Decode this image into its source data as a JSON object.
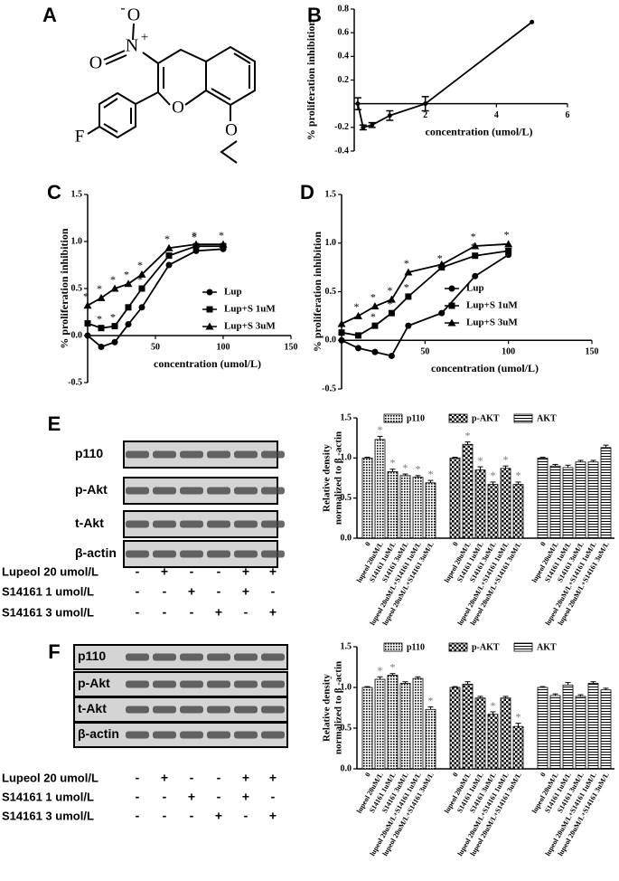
{
  "panel_labels": [
    "A",
    "B",
    "C",
    "D",
    "E",
    "F"
  ],
  "structure": {
    "atoms": [
      "O",
      "-",
      "N",
      "+",
      "O",
      "O",
      "F",
      "O"
    ]
  },
  "chart_data": [
    {
      "type": "line",
      "x": [
        0.1,
        0.25,
        0.5,
        1,
        2,
        5
      ],
      "values": [
        0.0,
        -0.2,
        -0.18,
        -0.1,
        0.0,
        0.69
      ],
      "errors": [
        0.05,
        0.02,
        0.02,
        0.04,
        0.06,
        0.0
      ],
      "xlim": [
        0,
        6
      ],
      "xticks": [
        2,
        4,
        6
      ],
      "ylim": [
        -0.4,
        0.8
      ],
      "yticks": [
        -0.4,
        -0.2,
        0.2,
        0.4,
        0.6,
        0.8
      ],
      "xlabel": "concentration (umol/L)",
      "ylabel": "% proliferation inhibition",
      "color": "#000000"
    },
    {
      "type": "line",
      "x": [
        0,
        10,
        20,
        30,
        40,
        60,
        80,
        100
      ],
      "series": [
        {
          "name": "Lup",
          "marker": "circle",
          "color": "#000000",
          "values": [
            0.0,
            -0.12,
            -0.07,
            0.12,
            0.3,
            0.75,
            0.9,
            0.92
          ],
          "significance": [
            null,
            null,
            null,
            null,
            null,
            null,
            null,
            null
          ]
        },
        {
          "name": "Lup+S  1uM",
          "marker": "square",
          "color": "#000000",
          "values": [
            0.13,
            0.08,
            0.1,
            0.3,
            0.5,
            0.85,
            0.95,
            0.95
          ],
          "significance": [
            null,
            "*",
            "*",
            null,
            "*",
            null,
            "*",
            null
          ]
        },
        {
          "name": "Lup+S  3uM",
          "marker": "triangle",
          "color": "#000000",
          "values": [
            0.32,
            0.4,
            0.5,
            0.55,
            0.65,
            0.93,
            0.97,
            0.97
          ],
          "significance": [
            "*",
            "*",
            "*",
            "*",
            "*",
            "*",
            "*",
            "*"
          ]
        }
      ],
      "xlim": [
        0,
        150
      ],
      "xticks": [
        50,
        100,
        150
      ],
      "ylim": [
        -0.5,
        1.5
      ],
      "yticks": [
        -0.5,
        {
          "value": 0,
          "label": "0.0"
        },
        0.5,
        {
          "value": 1,
          "label": "1.0"
        },
        1.5
      ],
      "xlabel": "concentration (umol/L)",
      "ylabel": "% proliferation inhibition"
    },
    {
      "type": "line",
      "x": [
        0,
        10,
        20,
        30,
        40,
        60,
        80,
        100
      ],
      "series": [
        {
          "name": "Lup",
          "marker": "circle",
          "color": "#000000",
          "values": [
            0.0,
            -0.08,
            -0.12,
            -0.16,
            0.15,
            0.28,
            0.66,
            0.88
          ],
          "significance": [
            null,
            null,
            null,
            null,
            null,
            null,
            null,
            null
          ]
        },
        {
          "name": "Lup+S  1uM",
          "marker": "square",
          "color": "#000000",
          "values": [
            0.08,
            0.05,
            0.15,
            0.28,
            0.45,
            0.75,
            0.87,
            0.92
          ],
          "significance": [
            null,
            null,
            "*",
            "*",
            "*",
            "*",
            "*",
            null
          ]
        },
        {
          "name": "Lup+S  3uM",
          "marker": "triangle",
          "color": "#000000",
          "values": [
            0.17,
            0.25,
            0.35,
            0.42,
            0.7,
            0.78,
            0.97,
            0.99
          ],
          "significance": [
            null,
            "*",
            "*",
            "*",
            "*",
            null,
            "*",
            "*"
          ]
        }
      ],
      "xlim": [
        0,
        150
      ],
      "xticks": [
        50,
        100,
        150
      ],
      "ylim": [
        -0.5,
        1.5
      ],
      "yticks": [
        -0.5,
        {
          "value": 0,
          "label": "0.0"
        },
        0.5,
        {
          "value": 1,
          "label": "1.0"
        },
        1.5
      ],
      "xlabel": "concentration (umol/L)",
      "ylabel": "% proliferation inhibition"
    },
    {
      "type": "bar",
      "ylim": [
        0,
        1.5
      ],
      "yticks": [
        {
          "value": 0,
          "label": "0.0"
        },
        0.5,
        {
          "value": 1,
          "label": "1.0"
        },
        1.5
      ],
      "ylabel": [
        "Relative density",
        "normalized to β -actin"
      ],
      "series": [
        {
          "name": "p110",
          "pattern": "dots",
          "categories": [
            "0",
            "lupeol 20uM/L",
            "S14161 1uM/L",
            "S14161 3uM/L",
            "lupeol 20uM/L+S14161 1uM/L",
            "lupeol 20uM/L+S14161 3uM/L"
          ],
          "values": [
            1.0,
            1.23,
            0.83,
            0.78,
            0.76,
            0.69
          ],
          "errors": [
            0.01,
            0.04,
            0.03,
            0.02,
            0.02,
            0.03
          ],
          "significance": [
            null,
            "*",
            "*",
            "*",
            "*",
            "*"
          ]
        },
        {
          "name": "p-AKT",
          "pattern": "checker",
          "categories": [
            "0",
            "lupeol 20uM/L",
            "S14161 1uM/L",
            "S14161 3uM/L",
            "lupeol 20uM/L+S14161 1uM/L",
            "lupeol 20uM/L+S14161 3uM/L"
          ],
          "values": [
            1.0,
            1.17,
            0.85,
            0.67,
            0.87,
            0.67
          ],
          "errors": [
            0.01,
            0.03,
            0.04,
            0.03,
            0.03,
            0.03
          ],
          "significance": [
            null,
            "*",
            "*",
            "*",
            "*",
            "*"
          ]
        },
        {
          "name": "AKT",
          "pattern": "hlines",
          "categories": [
            "0",
            "lupeol 20uM/L",
            "S14161 1uM/L",
            "S14161 3uM/L",
            "lupeol 20uM/L+S14161 1uM/L",
            "lupeol 20uM/L+S14161 3uM/L"
          ],
          "values": [
            1.0,
            0.9,
            0.88,
            0.95,
            0.95,
            1.13
          ],
          "errors": [
            0.01,
            0.02,
            0.03,
            0.02,
            0.02,
            0.03
          ],
          "significance": [
            null,
            null,
            null,
            null,
            null,
            null
          ]
        }
      ]
    },
    {
      "type": "bar",
      "ylim": [
        0,
        1.5
      ],
      "yticks": [
        {
          "value": 0,
          "label": "0.0"
        },
        0.5,
        {
          "value": 1,
          "label": "1.0"
        },
        1.5
      ],
      "ylabel": [
        "Relative density",
        "normalized to β -actin"
      ],
      "series": [
        {
          "name": "p110",
          "pattern": "dots",
          "categories": [
            "0",
            "lupeol 20uM/L",
            "S14161 1uM/L",
            "S14161 3uM/L",
            "lupeol 20uM/L+S14161 1uM/L",
            "lupeol 20uM/L+S14161 3uM/L"
          ],
          "values": [
            1.0,
            1.1,
            1.15,
            1.05,
            1.11,
            0.73
          ],
          "errors": [
            0.01,
            0.03,
            0.02,
            0.02,
            0.02,
            0.03
          ],
          "significance": [
            null,
            "*",
            "*",
            null,
            null,
            "*"
          ]
        },
        {
          "name": "p-AKT",
          "pattern": "checker",
          "categories": [
            "0",
            "lupeol 20uM/L",
            "S14161 1uM/L",
            "S14161 3uM/L",
            "lupeol 20uM/L+S14161 1uM/L",
            "lupeol 20uM/L+S14161 3uM/L"
          ],
          "values": [
            1.0,
            1.04,
            0.87,
            0.67,
            0.87,
            0.52
          ],
          "errors": [
            0.01,
            0.03,
            0.02,
            0.03,
            0.02,
            0.04
          ],
          "significance": [
            null,
            null,
            null,
            "*",
            null,
            "*"
          ]
        },
        {
          "name": "AKT",
          "pattern": "hlines",
          "categories": [
            "0",
            "lupeol 20uM/L",
            "S14161 1uM/L",
            "S14161 3uM/L",
            "lupeol 20uM/L+S14161 1uM/L",
            "lupeol 20uM/L+S14161 3uM/L"
          ],
          "values": [
            1.0,
            0.9,
            1.03,
            0.89,
            1.05,
            0.97
          ],
          "errors": [
            0.01,
            0.02,
            0.03,
            0.02,
            0.02,
            0.02
          ],
          "significance": [
            null,
            null,
            null,
            null,
            null,
            null
          ]
        }
      ]
    }
  ],
  "blots": [
    {
      "rows": [
        "p110",
        "p-Akt",
        "t-Akt",
        "β-actin"
      ],
      "treatments": [
        {
          "label": "Lupeol 20 umol/L",
          "signs": [
            "-",
            "+",
            "-",
            "-",
            "+",
            "+"
          ]
        },
        {
          "label": "S14161 1 umol/L",
          "signs": [
            "-",
            "-",
            "+",
            "-",
            "+",
            "-"
          ]
        },
        {
          "label": "S14161 3 umol/L",
          "signs": [
            "-",
            "-",
            "-",
            "+",
            "-",
            "+"
          ]
        }
      ]
    },
    {
      "rows": [
        "p110",
        "p-Akt",
        "t-Akt",
        "β-actin"
      ],
      "treatments": [
        {
          "label": "Lupeol 20 umol/L",
          "signs": [
            "-",
            "+",
            "-",
            "-",
            "+",
            "+"
          ]
        },
        {
          "label": "S14161 1 umol/L",
          "signs": [
            "-",
            "-",
            "+",
            "-",
            "+",
            "-"
          ]
        },
        {
          "label": "S14161 3 umol/L",
          "signs": [
            "-",
            "-",
            "-",
            "+",
            "-",
            "+"
          ]
        }
      ]
    }
  ]
}
